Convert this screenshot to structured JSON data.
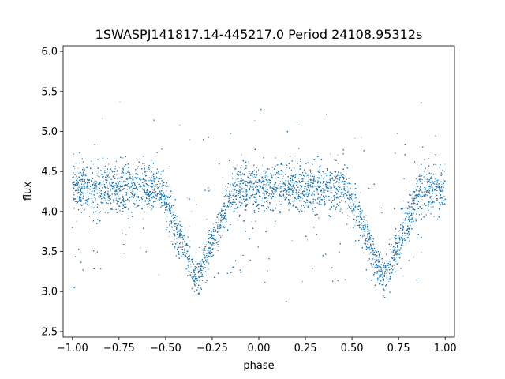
{
  "chart_data": {
    "type": "scatter",
    "title": "1SWASPJ141817.14-445217.0 Period 24108.95312s",
    "xlabel": "phase",
    "ylabel": "flux",
    "xlim": [
      -1.05,
      1.05
    ],
    "ylim": [
      2.43,
      6.07
    ],
    "xticks": [
      -1.0,
      -0.75,
      -0.5,
      -0.25,
      0.0,
      0.25,
      0.5,
      0.75,
      1.0
    ],
    "xtick_labels": [
      "−1.00",
      "−0.75",
      "−0.50",
      "−0.25",
      "0.00",
      "0.25",
      "0.50",
      "0.75",
      "1.00"
    ],
    "yticks": [
      2.5,
      3.0,
      3.5,
      4.0,
      4.5,
      5.0,
      5.5,
      6.0
    ],
    "ytick_labels": [
      "2.5",
      "3.0",
      "3.5",
      "4.0",
      "4.5",
      "5.0",
      "5.5",
      "6.0"
    ],
    "grid": false,
    "marker_color": "#1f77b4",
    "series": [
      {
        "x_range": [
          -1.0,
          1.0
        ],
        "baseline_flux": 4.3,
        "scatter_std": 0.15,
        "eclipse_phases": [
          -0.33,
          0.67
        ],
        "eclipse_min_flux": 3.15,
        "eclipse_half_width": 0.2,
        "point_count": 30000
      }
    ]
  }
}
